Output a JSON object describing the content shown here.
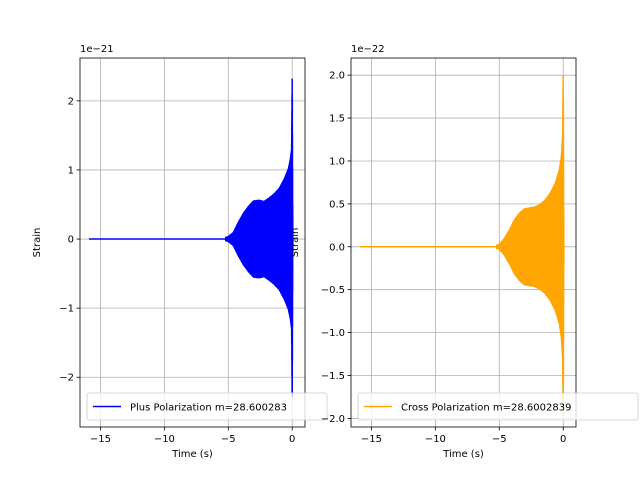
{
  "chart_data": [
    {
      "type": "line",
      "xlabel": "Time (s)",
      "ylabel": "Strain",
      "offset_text": "1e−21",
      "xlim": [
        -16.6,
        1.0
      ],
      "ylim": [
        -2.72,
        2.62
      ],
      "xticks": [
        -15,
        -10,
        -5,
        0
      ],
      "xtick_labels": [
        "−15",
        "−10",
        "−5",
        "0"
      ],
      "yticks": [
        -2,
        -1,
        0,
        1,
        2
      ],
      "ytick_labels": [
        "−2",
        "−1",
        "0",
        "1",
        "2"
      ],
      "grid": true,
      "legend_position": "lower-right",
      "series": [
        {
          "name": "Plus Polarization m=28.600283",
          "color": "#0000ff",
          "x_range": [
            -15.9,
            0.05
          ],
          "envelope": [
            [
              -15.9,
              0.0
            ],
            [
              -10.0,
              0.002
            ],
            [
              -6.0,
              0.01
            ],
            [
              -5.0,
              0.04
            ],
            [
              -4.6,
              0.1
            ],
            [
              -4.2,
              0.25
            ],
            [
              -3.8,
              0.38
            ],
            [
              -3.4,
              0.48
            ],
            [
              -3.0,
              0.56
            ],
            [
              -2.6,
              0.57
            ],
            [
              -2.2,
              0.55
            ],
            [
              -1.8,
              0.6
            ],
            [
              -1.4,
              0.66
            ],
            [
              -1.0,
              0.74
            ],
            [
              -0.6,
              0.88
            ],
            [
              -0.3,
              1.02
            ],
            [
              -0.15,
              1.15
            ],
            [
              -0.05,
              1.3
            ],
            [
              0.0,
              2.39
            ],
            [
              0.05,
              0.0
            ]
          ]
        }
      ]
    },
    {
      "type": "line",
      "xlabel": "Time (s)",
      "ylabel": "Strain",
      "offset_text": "1e−22",
      "xlim": [
        -16.6,
        1.0
      ],
      "ylim": [
        -2.1,
        2.2
      ],
      "xticks": [
        -15,
        -10,
        -5,
        0
      ],
      "xtick_labels": [
        "−15",
        "−10",
        "−5",
        "0"
      ],
      "yticks": [
        -2.0,
        -1.5,
        -1.0,
        -0.5,
        0.0,
        0.5,
        1.0,
        1.5,
        2.0
      ],
      "ytick_labels": [
        "−2.0",
        "−1.5",
        "−1.0",
        "−0.5",
        "0.0",
        "0.5",
        "1.0",
        "1.5",
        "2.0"
      ],
      "grid": true,
      "legend_position": "lower-right",
      "series": [
        {
          "name": "Cross Polarization m=28.6002839",
          "color": "#ffa500",
          "x_range": [
            -15.9,
            0.05
          ],
          "envelope": [
            [
              -15.9,
              0.0
            ],
            [
              -10.0,
              0.002
            ],
            [
              -6.0,
              0.01
            ],
            [
              -5.0,
              0.03
            ],
            [
              -4.6,
              0.1
            ],
            [
              -4.2,
              0.2
            ],
            [
              -3.8,
              0.32
            ],
            [
              -3.4,
              0.4
            ],
            [
              -3.0,
              0.45
            ],
            [
              -2.6,
              0.46
            ],
            [
              -2.2,
              0.47
            ],
            [
              -1.8,
              0.5
            ],
            [
              -1.4,
              0.55
            ],
            [
              -1.0,
              0.63
            ],
            [
              -0.6,
              0.75
            ],
            [
              -0.3,
              0.9
            ],
            [
              -0.15,
              1.05
            ],
            [
              -0.05,
              1.3
            ],
            [
              0.0,
              2.05
            ],
            [
              0.05,
              0.0
            ]
          ]
        }
      ]
    }
  ]
}
